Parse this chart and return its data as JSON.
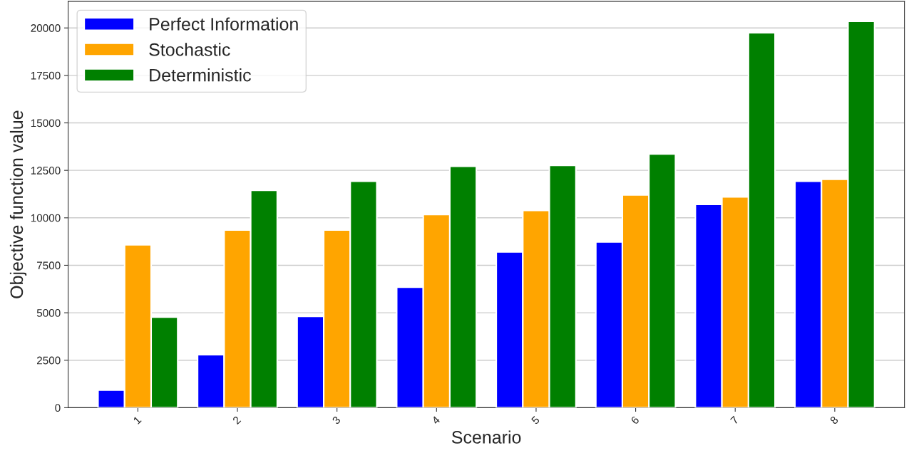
{
  "chart_data": {
    "type": "bar",
    "xlabel": "Scenario",
    "ylabel": "Objective function value",
    "categories": [
      "1",
      "2",
      "3",
      "4",
      "5",
      "6",
      "7",
      "8"
    ],
    "series": [
      {
        "name": "Perfect Information",
        "color": "#0000ff",
        "values": [
          925,
          2790,
          4810,
          6350,
          8200,
          8725,
          10710,
          11930
        ]
      },
      {
        "name": "Stochastic",
        "color": "#ffa500",
        "values": [
          8575,
          9360,
          9360,
          10175,
          10390,
          11200,
          11100,
          12025
        ]
      },
      {
        "name": "Deterministic",
        "color": "#008000",
        "values": [
          4775,
          11450,
          11925,
          12710,
          12760,
          13360,
          19750,
          20350
        ]
      }
    ],
    "ylim": [
      0,
      21400
    ],
    "yticks": [
      0,
      2500,
      5000,
      7500,
      10000,
      12500,
      15000,
      17500,
      20000
    ],
    "grid": "y",
    "legend": "top left"
  }
}
